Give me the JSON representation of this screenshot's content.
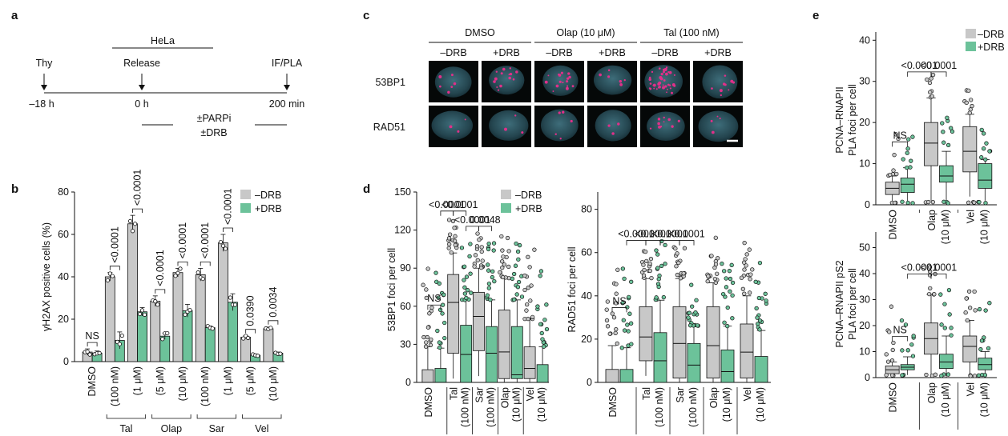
{
  "panel_letters": [
    "a",
    "b",
    "c",
    "d",
    "e"
  ],
  "colors": {
    "minus_drb": "#c8c8c8",
    "plus_drb": "#6cc29a",
    "foci_magenta": "#e0308a",
    "nucleus_cyan": "#3d6b78"
  },
  "timeline": {
    "cell_line": "HeLa",
    "events": [
      {
        "label": "Thy",
        "time": "–18 h"
      },
      {
        "label": "Release",
        "time": "0 h"
      },
      {
        "label": "IF/PLA",
        "time": "200 min"
      }
    ],
    "treatment_line1": "±PARPi",
    "treatment_line2": "±DRB"
  },
  "legend": {
    "minus": "–DRB",
    "plus": "+DRB"
  },
  "microscopy": {
    "groups": [
      "DMSO",
      "Olap (10 μM)",
      "Tal (100 nM)"
    ],
    "columns": [
      "–DRB",
      "+DRB",
      "–DRB",
      "+DRB",
      "–DRB",
      "+DRB"
    ],
    "rows": [
      "53BP1",
      "RAD51"
    ],
    "foci_53BP1": [
      6,
      14,
      16,
      6,
      40,
      10
    ],
    "foci_RAD51": [
      3,
      3,
      5,
      3,
      10,
      4
    ]
  },
  "chart_data": [
    {
      "id": "b",
      "type": "bar",
      "ylabel": "γH2AX positive cells (%)",
      "ylim": [
        0,
        80
      ],
      "yticks": [
        0,
        20,
        40,
        60,
        80
      ],
      "categories": [
        "DMSO",
        "(100 nM)",
        "(1 μM)",
        "(5 μM)",
        "(10 μM)",
        "(100 nM)",
        "(1 μM)",
        "(5 μM)",
        "(10 μM)"
      ],
      "groups": [
        {
          "label": "Tal",
          "from": 1,
          "to": 2
        },
        {
          "label": "Olap",
          "from": 3,
          "to": 4
        },
        {
          "label": "Sar",
          "from": 5,
          "to": 6
        },
        {
          "label": "Vel",
          "from": 7,
          "to": 8
        }
      ],
      "series": [
        {
          "name": "–DRB",
          "values": [
            4.5,
            40,
            65,
            28.5,
            42,
            41,
            56,
            11.5,
            15.5
          ],
          "errors": [
            1.5,
            2,
            4,
            2.5,
            2,
            3,
            4,
            0.7,
            0.8
          ]
        },
        {
          "name": "+DRB",
          "values": [
            4,
            10,
            23.5,
            12,
            24,
            16,
            28,
            3,
            4
          ],
          "errors": [
            1,
            4,
            2,
            1.5,
            3,
            0.8,
            4,
            0.5,
            0.5
          ]
        }
      ],
      "annotations": [
        {
          "from": 0,
          "text": "NS"
        },
        {
          "from": 1,
          "text": "<0.0001"
        },
        {
          "from": 2,
          "text": "<0.0001"
        },
        {
          "from": 3,
          "text": "<0.0001"
        },
        {
          "from": 4,
          "text": "<0.0001"
        },
        {
          "from": 5,
          "text": "<0.0001"
        },
        {
          "from": 6,
          "text": "<0.0001"
        },
        {
          "from": 7,
          "text": "0.0390"
        },
        {
          "from": 8,
          "text": "0.0034"
        }
      ]
    },
    {
      "id": "d1",
      "type": "box",
      "ylabel": "53BP1 foci per cell",
      "ylim": [
        0,
        150
      ],
      "yticks": [
        0,
        30,
        60,
        90,
        120,
        150
      ],
      "categories": [
        "DMSO",
        "Tal",
        "Sar",
        "Olap",
        "Vel"
      ],
      "sublabels": [
        "",
        "(100 nM)",
        "(100 nM)",
        "(10 μM)",
        "(10 μM)"
      ],
      "series": [
        {
          "name": "–DRB",
          "boxes": [
            [
              0,
              0,
              0,
              10,
              28
            ],
            [
              3,
              23,
              63,
              85,
              102
            ],
            [
              5,
              25,
              52,
              71,
              90
            ],
            [
              0,
              3,
              24,
              57,
              82
            ],
            [
              0,
              3,
              11,
              28,
              50
            ]
          ]
        },
        {
          "name": "+DRB",
          "boxes": [
            [
              0,
              0,
              0,
              11,
              27
            ],
            [
              0,
              0,
              22,
              45,
              65
            ],
            [
              0,
              0,
              23,
              44,
              65
            ],
            [
              0,
              3,
              6,
              44,
              65
            ],
            [
              0,
              0,
              0,
              14,
              28
            ]
          ]
        }
      ],
      "annotations": [
        {
          "a": 0,
          "b": 1,
          "text": "NS"
        },
        {
          "a": 1,
          "b": 2,
          "text": "<0.0001"
        },
        {
          "a": 2,
          "b": 3,
          "text": "<0.0001"
        },
        {
          "a": 3,
          "b": 4,
          "text": "<0.0001"
        },
        {
          "a": 4,
          "b": 5,
          "text": "0.0048"
        }
      ]
    },
    {
      "id": "d2",
      "type": "box",
      "ylabel": "RAD51 foci per cell",
      "ylim": [
        0,
        88
      ],
      "yticks": [
        0,
        20,
        40,
        60,
        80
      ],
      "categories": [
        "DMSO",
        "Tal",
        "Sar",
        "Olap",
        "Vel"
      ],
      "sublabels": [
        "",
        "(100 nM)",
        "(100 nM)",
        "(10 μM)",
        "(10 μM)"
      ],
      "series": [
        {
          "name": "–DRB",
          "boxes": [
            [
              0,
              0,
              0,
              6,
              17
            ],
            [
              3,
              10,
              21,
              35,
              48
            ],
            [
              0,
              2,
              18,
              35,
              48
            ],
            [
              0,
              2,
              17,
              35,
              46
            ],
            [
              0,
              2,
              14,
              27,
              40
            ]
          ]
        },
        {
          "name": "+DRB",
          "boxes": [
            [
              0,
              0,
              0,
              6,
              16
            ],
            [
              0,
              0,
              10,
              23,
              38
            ],
            [
              0,
              0,
              8,
              18,
              26
            ],
            [
              0,
              0,
              5,
              15,
              26
            ],
            [
              0,
              0,
              0,
              12,
              24
            ]
          ]
        }
      ],
      "annotations": [
        {
          "a": 0,
          "b": 1,
          "text": "NS"
        },
        {
          "a": 1,
          "b": 2,
          "text": "<0.0001"
        },
        {
          "a": 2,
          "b": 3,
          "text": "<0.0001"
        },
        {
          "a": 3,
          "b": 4,
          "text": "<0.0001"
        },
        {
          "a": 4,
          "b": 5,
          "text": "<0.0001"
        }
      ]
    },
    {
      "id": "e1",
      "type": "box",
      "ylabel": "PCNA–RNAPII",
      "ylabel2": "PLA foci per cell",
      "ylim": [
        0,
        42
      ],
      "yticks": [
        0,
        10,
        20,
        30,
        40
      ],
      "categories": [
        "DMSO",
        "Olap",
        "Vel"
      ],
      "sublabels": [
        "",
        "(10 μM)",
        "(10 μM)"
      ],
      "series": [
        {
          "name": "–DRB",
          "boxes": [
            [
              0,
              2.5,
              4,
              5.5,
              7
            ],
            [
              1,
              9.5,
              15,
              20,
              26
            ],
            [
              2,
              8,
              13,
              19,
              22
            ]
          ]
        },
        {
          "name": "+DRB",
          "boxes": [
            [
              0,
              3,
              5,
              6.5,
              9
            ],
            [
              1,
              5.5,
              7,
              9.5,
              13
            ],
            [
              1,
              4,
              6,
              10,
              11
            ]
          ]
        }
      ],
      "annotations": [
        {
          "a": 0,
          "b": 1,
          "text": "NS"
        },
        {
          "a": 1,
          "b": 2,
          "text": "<0.0001"
        },
        {
          "a": 2,
          "b": 3,
          "text": "<0.0001"
        }
      ]
    },
    {
      "id": "e2",
      "type": "box",
      "ylabel": "PCNA–RNAPII pS2",
      "ylabel2": "PLA foci per cell",
      "ylim": [
        0,
        56
      ],
      "yticks": [
        0,
        10,
        20,
        30,
        40,
        50
      ],
      "categories": [
        "DMSO",
        "Olap",
        "Vel"
      ],
      "sublabels": [
        "",
        "(10 μM)",
        "(10 μM)"
      ],
      "series": [
        {
          "name": "–DRB",
          "boxes": [
            [
              0,
              1.5,
              3,
              4.5,
              6
            ],
            [
              0,
              9,
              15,
              21,
              32
            ],
            [
              1,
              6,
              12,
              16,
              22
            ]
          ]
        },
        {
          "name": "+DRB",
          "boxes": [
            [
              1,
              3,
              4,
              5,
              8
            ],
            [
              0,
              3.5,
              6,
              9,
              16
            ],
            [
              0,
              3,
              5,
              7.5,
              10
            ]
          ]
        }
      ],
      "annotations": [
        {
          "a": 0,
          "b": 1,
          "text": "NS"
        },
        {
          "a": 1,
          "b": 2,
          "text": "<0.0001"
        },
        {
          "a": 2,
          "b": 3,
          "text": "<0.0001"
        }
      ]
    }
  ]
}
